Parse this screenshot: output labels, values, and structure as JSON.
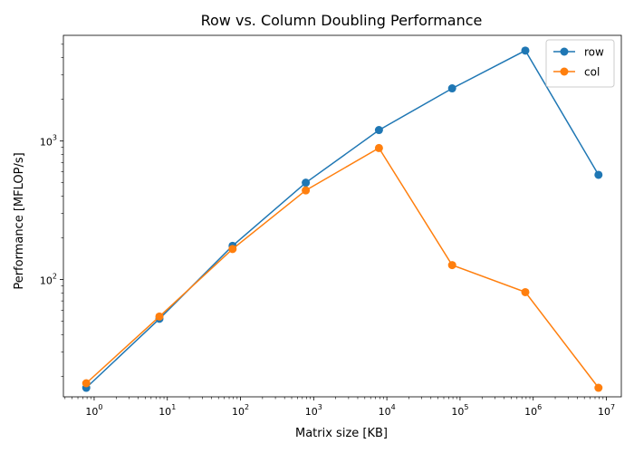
{
  "chart_data": {
    "type": "line",
    "title": "Row vs. Column Doubling Performance",
    "xlabel": "Matrix size [KB]",
    "ylabel": "Performance [MFLOP/s]",
    "xscale": "log",
    "yscale": "log",
    "xlim": [
      0.38,
      16000000.0
    ],
    "ylim": [
      14.2,
      5800
    ],
    "x_ticks": [
      {
        "value": 1,
        "base": "10",
        "exp": "0"
      },
      {
        "value": 10,
        "base": "10",
        "exp": "1"
      },
      {
        "value": 100,
        "base": "10",
        "exp": "2"
      },
      {
        "value": 1000,
        "base": "10",
        "exp": "3"
      },
      {
        "value": 10000,
        "base": "10",
        "exp": "4"
      },
      {
        "value": 100000,
        "base": "10",
        "exp": "5"
      },
      {
        "value": 1000000,
        "base": "10",
        "exp": "6"
      },
      {
        "value": 10000000,
        "base": "10",
        "exp": "7"
      }
    ],
    "y_ticks": [
      {
        "value": 100,
        "base": "10",
        "exp": "2"
      },
      {
        "value": 1000,
        "base": "10",
        "exp": "3"
      }
    ],
    "legend_position": "top-right",
    "grid": false,
    "series": [
      {
        "name": "row",
        "color": "#1f77b4",
        "x": [
          0.78,
          7.8,
          78,
          780,
          7800,
          78000,
          780000,
          7800000
        ],
        "y": [
          16.5,
          52,
          175,
          500,
          1200,
          2400,
          4500,
          570
        ]
      },
      {
        "name": "col",
        "color": "#ff7f0e",
        "x": [
          0.78,
          7.8,
          78,
          780,
          7800,
          78000,
          780000,
          7800000
        ],
        "y": [
          17.8,
          54,
          166,
          440,
          890,
          127,
          81,
          16.5
        ]
      }
    ]
  }
}
